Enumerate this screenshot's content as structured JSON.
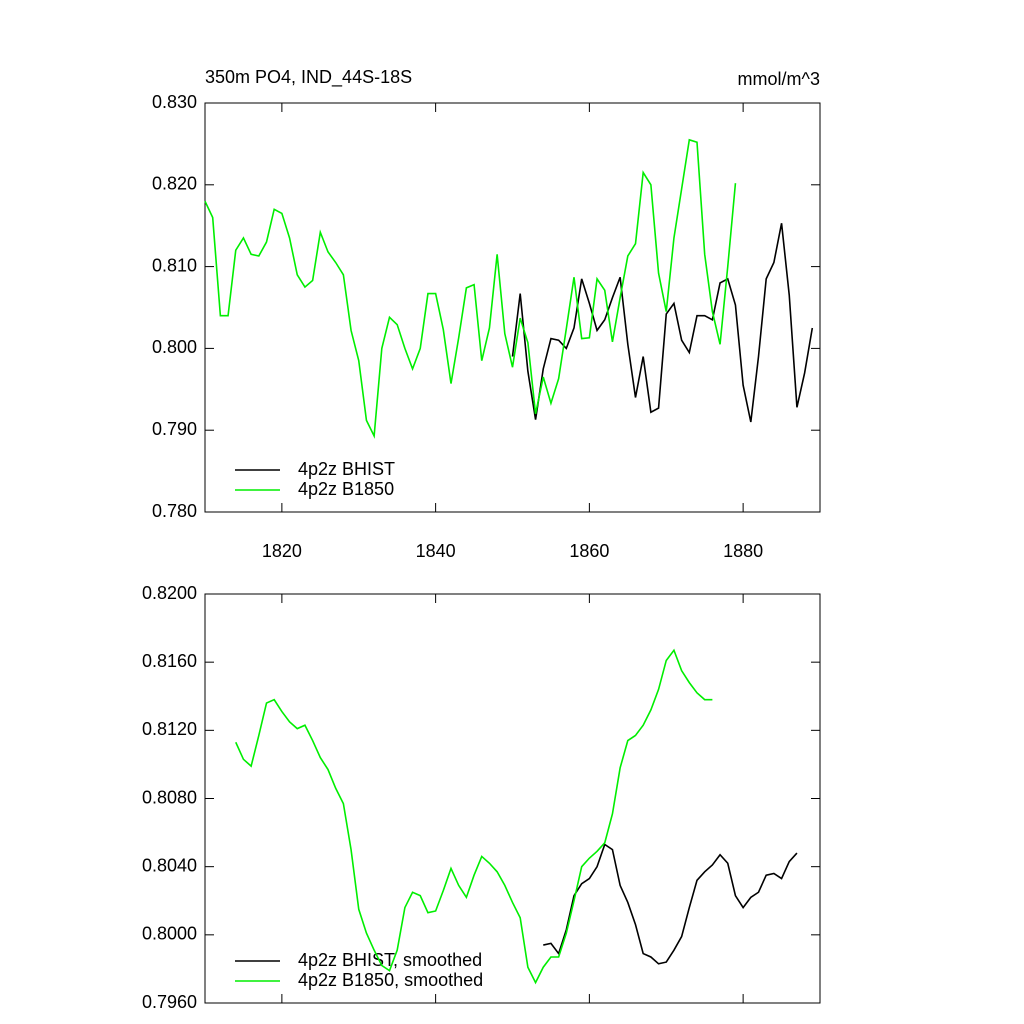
{
  "chart_data": [
    {
      "type": "line",
      "title": "350m PO4, IND_44S-18S",
      "units": "mmol/m^3",
      "xlim": [
        1810,
        1890
      ],
      "xticks": [
        1820,
        1840,
        1860,
        1880
      ],
      "ylim": [
        0.78,
        0.83
      ],
      "yticks": [
        {
          "value": 0.78,
          "label": "0.780"
        },
        {
          "value": 0.79,
          "label": "0.790"
        },
        {
          "value": 0.8,
          "label": "0.800"
        },
        {
          "value": 0.81,
          "label": "0.810"
        },
        {
          "value": 0.82,
          "label": "0.820"
        },
        {
          "value": 0.83,
          "label": "0.830"
        }
      ],
      "legend": "lower left",
      "series": [
        {
          "name": "4p2z BHIST",
          "color": "#000000",
          "x": [
            1850,
            1851,
            1852,
            1853,
            1854,
            1855,
            1856,
            1857,
            1858,
            1859,
            1860,
            1861,
            1862,
            1863,
            1864,
            1865,
            1866,
            1867,
            1868,
            1869,
            1870,
            1871,
            1872,
            1873,
            1874,
            1875,
            1876,
            1877,
            1878,
            1879,
            1880,
            1881,
            1882,
            1883,
            1884,
            1885,
            1886,
            1887,
            1888,
            1889
          ],
          "values": [
            0.799,
            0.8067,
            0.7972,
            0.7913,
            0.7975,
            0.8012,
            0.801,
            0.8,
            0.8025,
            0.8085,
            0.8055,
            0.8022,
            0.8035,
            0.8062,
            0.8087,
            0.8005,
            0.794,
            0.799,
            0.7922,
            0.7927,
            0.8042,
            0.8055,
            0.801,
            0.7995,
            0.804,
            0.804,
            0.8035,
            0.808,
            0.8085,
            0.8053,
            0.7955,
            0.791,
            0.799,
            0.8085,
            0.8105,
            0.8153,
            0.8065,
            0.7928,
            0.797,
            0.8025
          ]
        },
        {
          "name": "4p2z B1850",
          "color": "#00ee00",
          "x": [
            1810,
            1811,
            1812,
            1813,
            1814,
            1815,
            1816,
            1817,
            1818,
            1819,
            1820,
            1821,
            1822,
            1823,
            1824,
            1825,
            1826,
            1827,
            1828,
            1829,
            1830,
            1831,
            1832,
            1833,
            1834,
            1835,
            1836,
            1837,
            1838,
            1839,
            1840,
            1841,
            1842,
            1843,
            1844,
            1845,
            1846,
            1847,
            1848,
            1849,
            1850,
            1851,
            1852,
            1853,
            1854,
            1855,
            1856,
            1857,
            1858,
            1859,
            1860,
            1861,
            1862,
            1863,
            1864,
            1865,
            1866,
            1867,
            1868,
            1869,
            1870,
            1871,
            1872,
            1873,
            1874,
            1875,
            1876,
            1877,
            1878,
            1879
          ],
          "values": [
            0.818,
            0.816,
            0.804,
            0.804,
            0.812,
            0.8135,
            0.8115,
            0.8113,
            0.813,
            0.817,
            0.8165,
            0.8135,
            0.809,
            0.8075,
            0.8083,
            0.8142,
            0.8118,
            0.8105,
            0.809,
            0.8022,
            0.7985,
            0.7912,
            0.7893,
            0.8,
            0.8038,
            0.8029,
            0.8,
            0.7975,
            0.8,
            0.8067,
            0.8067,
            0.8023,
            0.7957,
            0.8013,
            0.8074,
            0.8078,
            0.7985,
            0.8025,
            0.8115,
            0.8018,
            0.7977,
            0.8037,
            0.8007,
            0.792,
            0.7965,
            0.7933,
            0.7963,
            0.8024,
            0.8087,
            0.8012,
            0.8013,
            0.8085,
            0.8071,
            0.8008,
            0.8062,
            0.8113,
            0.8128,
            0.8215,
            0.82,
            0.8092,
            0.8045,
            0.8135,
            0.8195,
            0.8255,
            0.8252,
            0.8115,
            0.8045,
            0.8005,
            0.81,
            0.8202
          ]
        }
      ]
    },
    {
      "type": "line",
      "xlim": [
        1810,
        1890
      ],
      "xticks": [
        1820,
        1840,
        1860,
        1880
      ],
      "x_tick_labels": false,
      "ylim": [
        0.796,
        0.82
      ],
      "yticks": [
        {
          "value": 0.796,
          "label": "0.7960"
        },
        {
          "value": 0.8,
          "label": "0.8000"
        },
        {
          "value": 0.804,
          "label": "0.8040"
        },
        {
          "value": 0.808,
          "label": "0.8080"
        },
        {
          "value": 0.812,
          "label": "0.8120"
        },
        {
          "value": 0.816,
          "label": "0.8160"
        },
        {
          "value": 0.82,
          "label": "0.8200"
        }
      ],
      "legend": "lower left",
      "series": [
        {
          "name": "4p2z BHIST, smoothed",
          "color": "#000000",
          "x": [
            1854,
            1855,
            1856,
            1857,
            1858,
            1859,
            1860,
            1861,
            1862,
            1863,
            1864,
            1865,
            1866,
            1867,
            1868,
            1869,
            1870,
            1871,
            1872,
            1873,
            1874,
            1875,
            1876,
            1877,
            1878,
            1879,
            1880,
            1881,
            1882,
            1883,
            1884,
            1885,
            1886,
            1887
          ],
          "values": [
            0.7994,
            0.7995,
            0.7989,
            0.8003,
            0.8023,
            0.803,
            0.8033,
            0.804,
            0.8053,
            0.805,
            0.8029,
            0.8019,
            0.8006,
            0.7989,
            0.7987,
            0.7983,
            0.7984,
            0.7991,
            0.7999,
            0.8016,
            0.8032,
            0.8037,
            0.8041,
            0.8047,
            0.8042,
            0.8023,
            0.8016,
            0.8022,
            0.8025,
            0.8035,
            0.8036,
            0.8033,
            0.8043,
            0.8048
          ]
        },
        {
          "name": "4p2z B1850, smoothed",
          "color": "#00ee00",
          "x": [
            1814,
            1815,
            1816,
            1817,
            1818,
            1819,
            1820,
            1821,
            1822,
            1823,
            1824,
            1825,
            1826,
            1827,
            1828,
            1829,
            1830,
            1831,
            1832,
            1833,
            1834,
            1835,
            1836,
            1837,
            1838,
            1839,
            1840,
            1841,
            1842,
            1843,
            1844,
            1845,
            1846,
            1847,
            1848,
            1849,
            1850,
            1851,
            1852,
            1853,
            1854,
            1855,
            1856,
            1857,
            1858,
            1859,
            1860,
            1861,
            1862,
            1863,
            1864,
            1865,
            1866,
            1867,
            1868,
            1869,
            1870,
            1871,
            1872,
            1873,
            1874,
            1875,
            1876
          ],
          "values": [
            0.8113,
            0.8103,
            0.8099,
            0.8117,
            0.8136,
            0.8138,
            0.8131,
            0.8125,
            0.8121,
            0.8123,
            0.8114,
            0.8104,
            0.8097,
            0.8086,
            0.8077,
            0.805,
            0.8015,
            0.8001,
            0.7991,
            0.7982,
            0.7979,
            0.7991,
            0.8016,
            0.8025,
            0.8023,
            0.8013,
            0.8014,
            0.8026,
            0.8039,
            0.8029,
            0.8022,
            0.8035,
            0.8046,
            0.8042,
            0.8037,
            0.8029,
            0.8019,
            0.801,
            0.7981,
            0.7972,
            0.7981,
            0.7987,
            0.7987,
            0.8001,
            0.802,
            0.804,
            0.8045,
            0.8049,
            0.8054,
            0.8071,
            0.8098,
            0.8114,
            0.8117,
            0.8123,
            0.8132,
            0.8144,
            0.8161,
            0.8167,
            0.8155,
            0.8148,
            0.8142,
            0.8138,
            0.8138
          ]
        }
      ]
    }
  ]
}
